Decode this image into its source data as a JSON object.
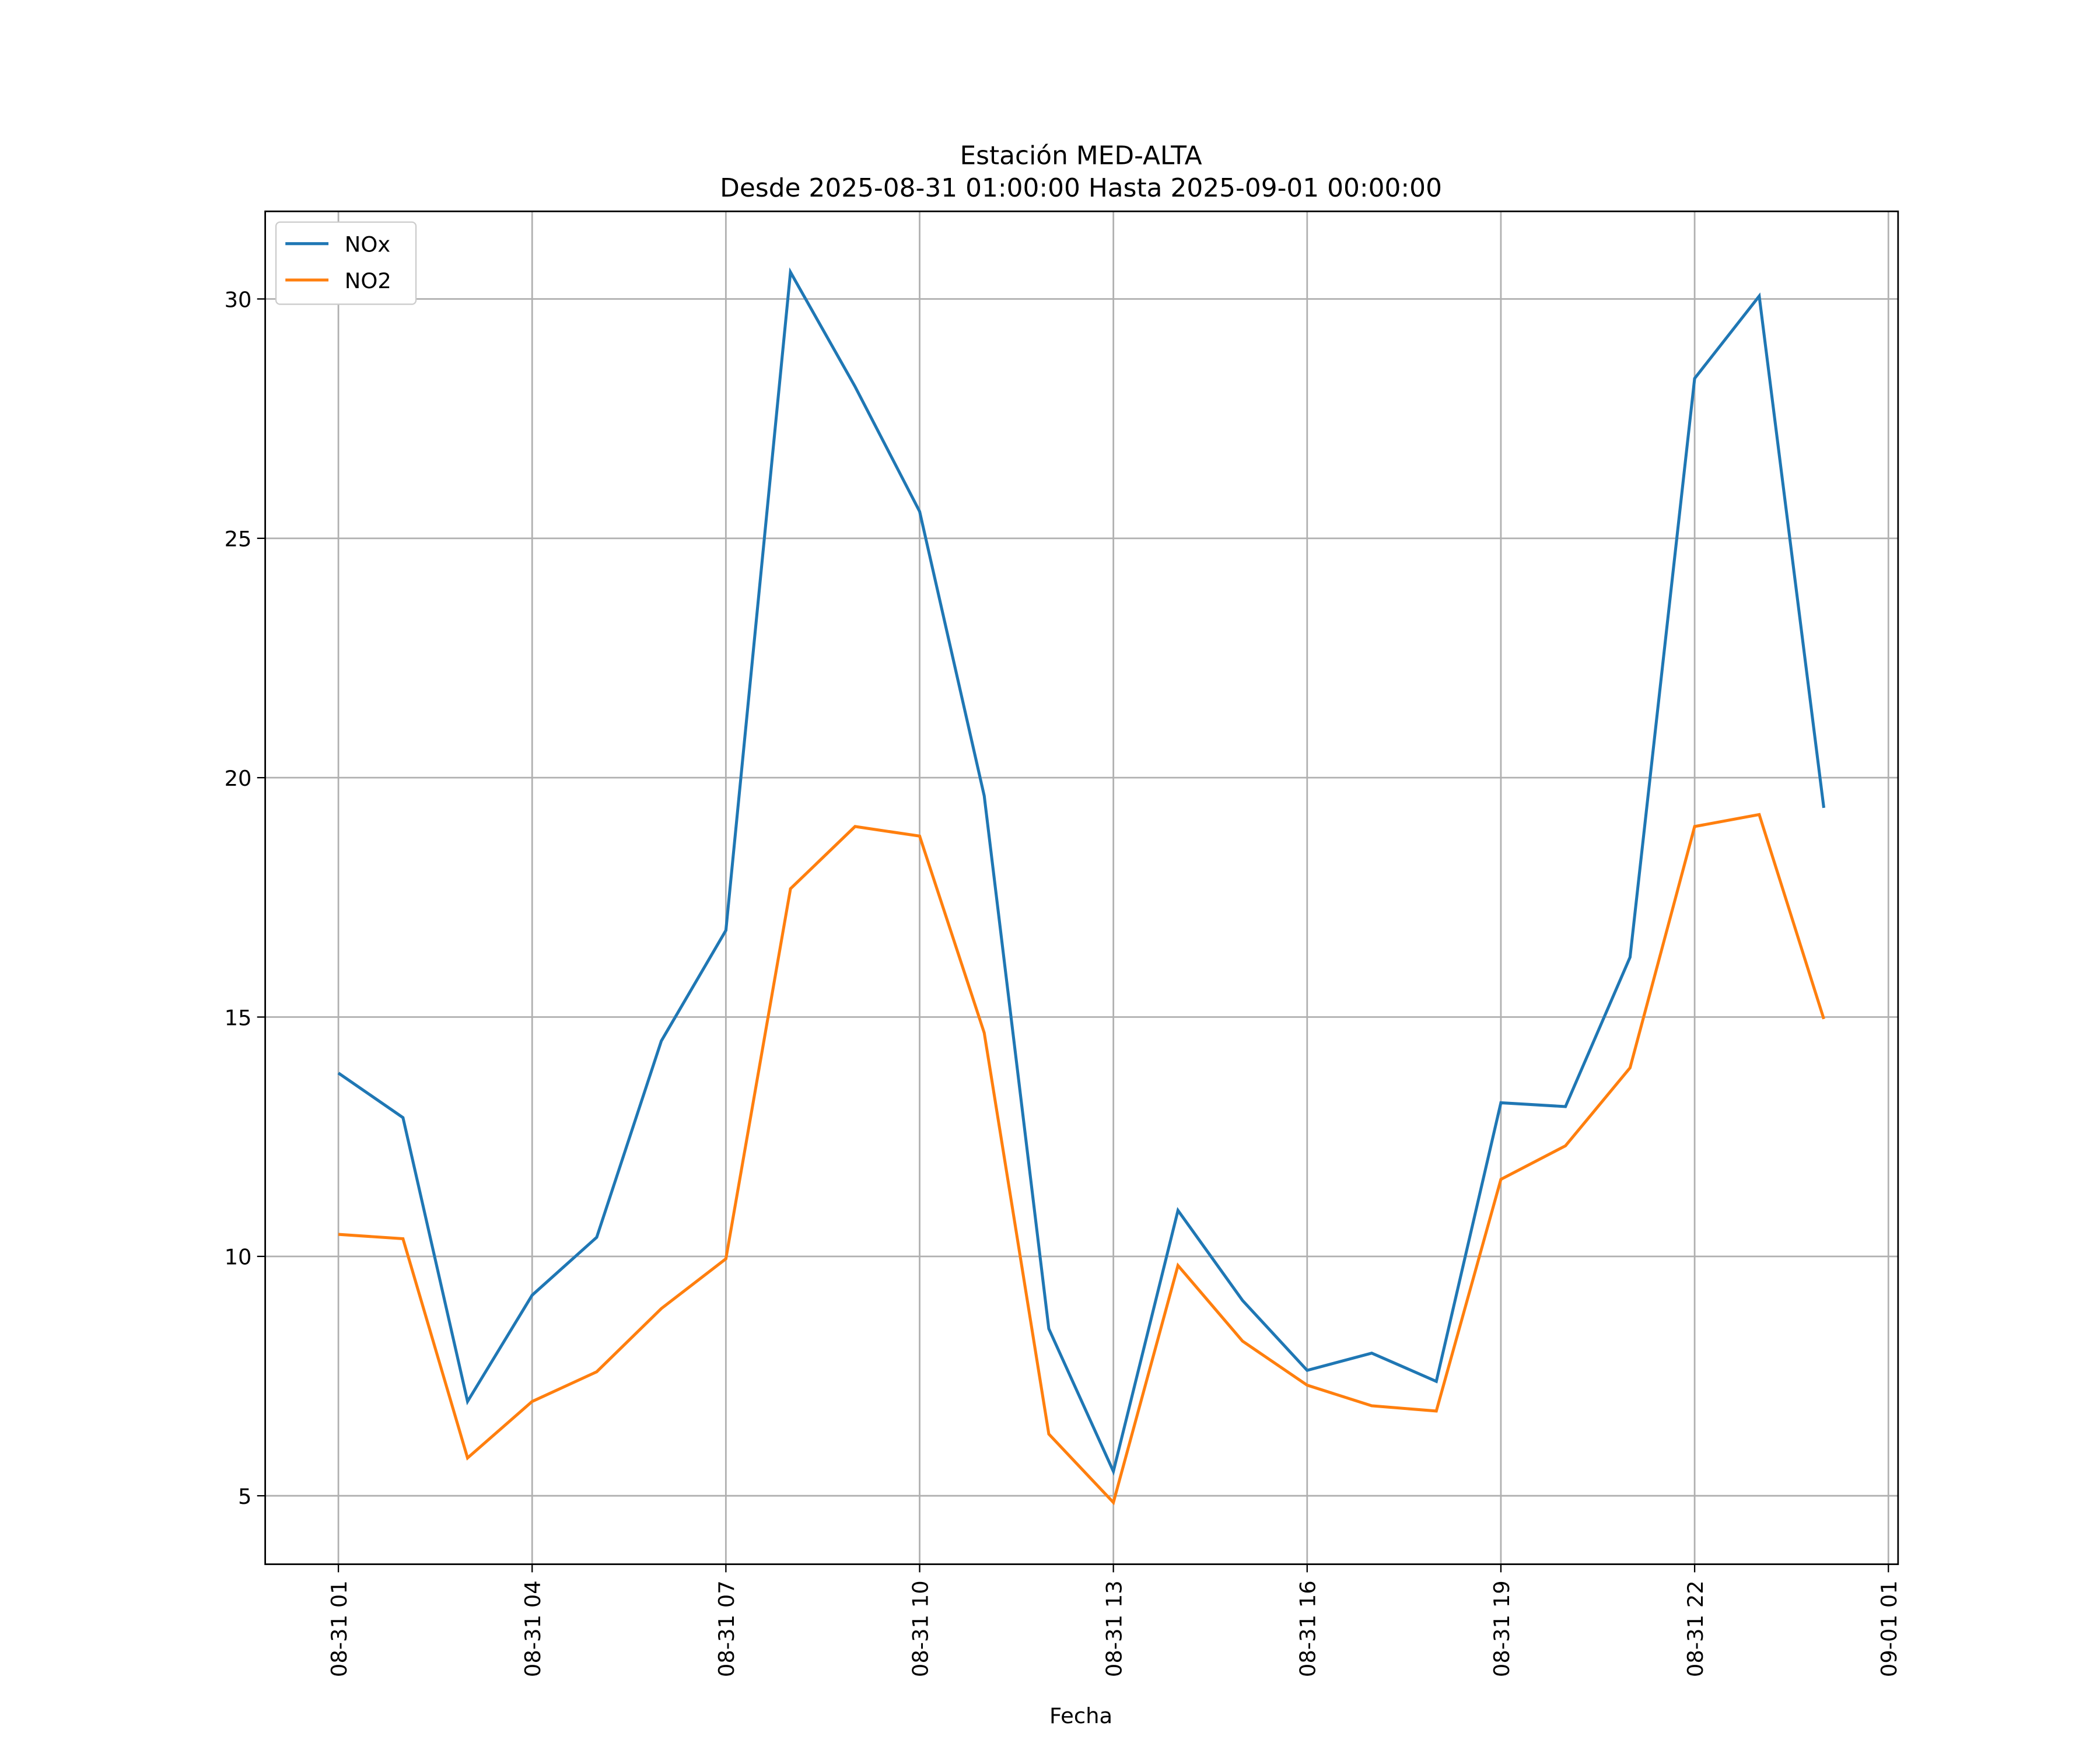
{
  "chart_data": {
    "type": "line",
    "title": "Estación MED-ALTA",
    "subtitle": "Desde 2025-08-31 01:00:00 Hasta 2025-09-01 00:00:00",
    "xlabel": "Fecha",
    "ylabel": "",
    "x_start": "2025-08-31 01:00",
    "x_step_hours": 1,
    "xlim": [
      "2025-08-30 23:52",
      "2025-09-01 01:09"
    ],
    "ylim": [
      3.57,
      31.83
    ],
    "grid": true,
    "legend_position": "top-left",
    "x_ticks": [
      {
        "label": "08-31 01",
        "hour": 0
      },
      {
        "label": "08-31 04",
        "hour": 3
      },
      {
        "label": "08-31 07",
        "hour": 6
      },
      {
        "label": "08-31 10",
        "hour": 9
      },
      {
        "label": "08-31 13",
        "hour": 12
      },
      {
        "label": "08-31 16",
        "hour": 15
      },
      {
        "label": "08-31 19",
        "hour": 18
      },
      {
        "label": "08-31 22",
        "hour": 21
      },
      {
        "label": "09-01 01",
        "hour": 24
      }
    ],
    "y_ticks": [
      5,
      10,
      15,
      20,
      25,
      30
    ],
    "series": [
      {
        "name": "NOx",
        "color": "#1f77b4",
        "values": [
          13.83,
          12.9,
          6.97,
          9.19,
          10.4,
          14.5,
          16.81,
          30.56,
          28.17,
          25.56,
          19.62,
          8.49,
          5.51,
          10.96,
          9.08,
          7.62,
          7.98,
          7.39,
          13.21,
          13.13,
          16.25,
          28.34,
          30.06,
          19.37
        ]
      },
      {
        "name": "NO2",
        "color": "#ff7f0e",
        "values": [
          10.46,
          10.37,
          5.79,
          6.97,
          7.59,
          8.91,
          9.95,
          17.68,
          18.98,
          18.78,
          14.67,
          6.29,
          4.86,
          9.81,
          8.23,
          7.31,
          6.88,
          6.77,
          11.61,
          12.31,
          13.94,
          18.98,
          19.23,
          14.96
        ]
      }
    ]
  }
}
